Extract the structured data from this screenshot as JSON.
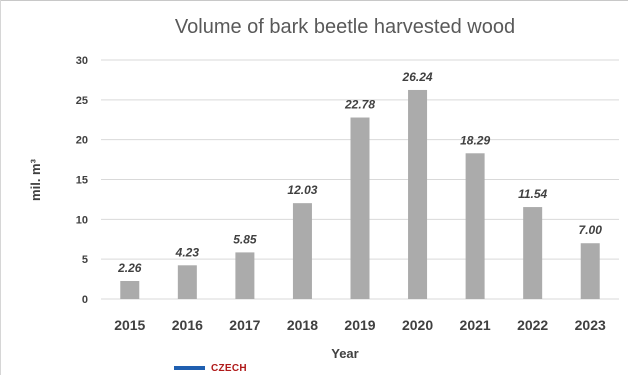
{
  "chart_data": {
    "type": "bar",
    "title": "Volume of bark beetle harvested wood",
    "xlabel": "Year",
    "ylabel": "mil. m³",
    "categories": [
      "2015",
      "2016",
      "2017",
      "2018",
      "2019",
      "2020",
      "2021",
      "2022",
      "2023"
    ],
    "values": [
      2.26,
      4.23,
      5.85,
      12.03,
      22.78,
      26.24,
      18.29,
      11.54,
      7.0
    ],
    "value_labels": [
      "2.26",
      "4.23",
      "5.85",
      "12.03",
      "22.78",
      "26.24",
      "18.29",
      "11.54",
      "7.00"
    ],
    "ylim": [
      0,
      30
    ],
    "yticks": [
      0,
      5,
      10,
      15,
      20,
      25,
      30
    ],
    "grid": true,
    "bar_color": "#ababab",
    "grid_color": "#d9d9d9"
  },
  "legend": {
    "label": "CZECH",
    "swatch_color": "#1f5fb0",
    "label_color": "#b01a1a"
  }
}
